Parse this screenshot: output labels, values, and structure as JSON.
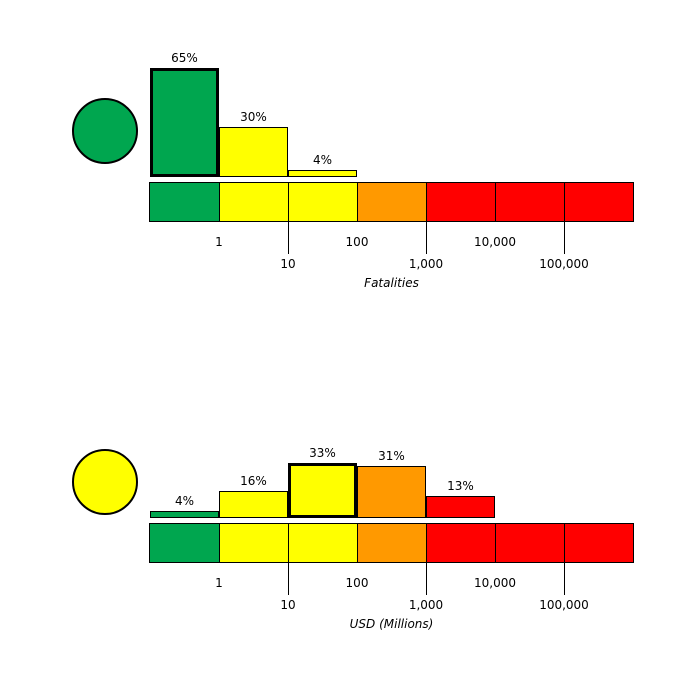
{
  "colors": {
    "green": "#00A64F",
    "yellow": "#FFFF00",
    "orange": "#FF9900",
    "red": "#FF0000",
    "outline": "#000000",
    "background": "#FFFFFF"
  },
  "chart_data": [
    {
      "type": "bar",
      "name": "fatalities-histogram",
      "alert_color": "green",
      "xlabel": "Fatalities",
      "ylabel": "",
      "ylim": [
        0,
        100
      ],
      "grid": false,
      "x_tick_labels": [
        "1",
        "10",
        "100",
        "1,000",
        "10,000",
        "100,000"
      ],
      "scale_colors": [
        "green",
        "yellow",
        "yellow",
        "orange",
        "red",
        "red",
        "red"
      ],
      "bins": [
        {
          "range": "< 1",
          "pct": 65,
          "label": "65%",
          "color": "green",
          "selected": true
        },
        {
          "range": "1 - 10",
          "pct": 30,
          "label": "30%",
          "color": "yellow",
          "selected": false
        },
        {
          "range": "10 - 100",
          "pct": 4,
          "label": "4%",
          "color": "yellow",
          "selected": false
        },
        {
          "range": "100 - 1,000",
          "pct": 0,
          "label": "",
          "color": "orange",
          "selected": false
        },
        {
          "range": "1,000 - 10,000",
          "pct": 0,
          "label": "",
          "color": "red",
          "selected": false
        },
        {
          "range": "10,000 - 100,000",
          "pct": 0,
          "label": "",
          "color": "red",
          "selected": false
        },
        {
          "range": "> 100,000",
          "pct": 0,
          "label": "",
          "color": "red",
          "selected": false
        }
      ]
    },
    {
      "type": "bar",
      "name": "economic-losses-histogram",
      "alert_color": "yellow",
      "xlabel": "USD (Millions)",
      "ylabel": "",
      "ylim": [
        0,
        100
      ],
      "grid": false,
      "x_tick_labels": [
        "1",
        "10",
        "100",
        "1,000",
        "10,000",
        "100,000"
      ],
      "scale_colors": [
        "green",
        "yellow",
        "yellow",
        "orange",
        "red",
        "red",
        "red"
      ],
      "bins": [
        {
          "range": "< 1",
          "pct": 4,
          "label": "4%",
          "color": "green",
          "selected": false
        },
        {
          "range": "1 - 10",
          "pct": 16,
          "label": "16%",
          "color": "yellow",
          "selected": false
        },
        {
          "range": "10 - 100",
          "pct": 33,
          "label": "33%",
          "color": "yellow",
          "selected": true
        },
        {
          "range": "100 - 1,000",
          "pct": 31,
          "label": "31%",
          "color": "orange",
          "selected": false
        },
        {
          "range": "1,000 - 10,000",
          "pct": 13,
          "label": "13%",
          "color": "red",
          "selected": false
        },
        {
          "range": "10,000 - 100,000",
          "pct": 0,
          "label": "",
          "color": "red",
          "selected": false
        },
        {
          "range": "> 100,000",
          "pct": 0,
          "label": "",
          "color": "red",
          "selected": false
        }
      ]
    }
  ]
}
